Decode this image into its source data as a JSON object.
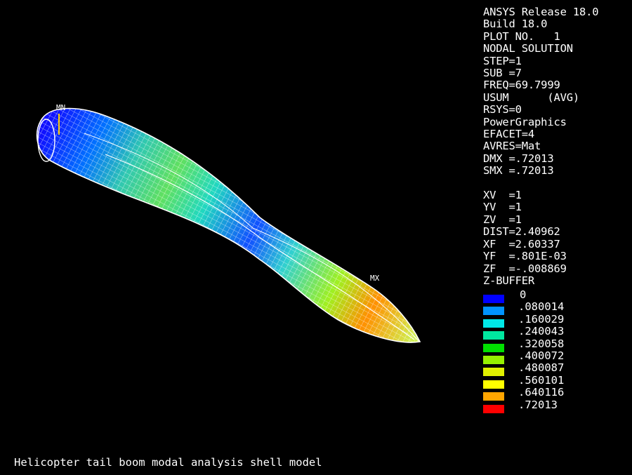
{
  "info_lines": [
    "ANSYS Release 18.0",
    "Build 18.0",
    "PLOT NO.   1",
    "NODAL SOLUTION",
    "STEP=1",
    "SUB =7",
    "FREQ=69.7999",
    "USUM      (AVG)",
    "RSYS=0",
    "PowerGraphics",
    "EFACET=4",
    "AVRES=Mat",
    "DMX =.72013",
    "SMX =.72013"
  ],
  "view_lines": [
    "XV  =1",
    "YV  =1",
    "ZV  =1",
    "DIST=2.40962",
    "XF  =2.60337",
    "YF  =.801E-03",
    "ZF  =-.008869",
    "Z-BUFFER"
  ],
  "legend": {
    "labels": [
      "0",
      ".080014",
      ".160029",
      ".240043",
      ".320058",
      ".400072",
      ".480087",
      ".560101",
      ".640116",
      ".72013"
    ],
    "colors": [
      "#0000ff",
      "#0094ff",
      "#00e8e8",
      "#00e8a0",
      "#00e000",
      "#96f000",
      "#e0f000",
      "#ffff00",
      "#ffa500",
      "#ff0000"
    ]
  },
  "markers": {
    "min": "MN",
    "max": "MX"
  },
  "caption": "Helicopter tail boom modal analysis shell model"
}
